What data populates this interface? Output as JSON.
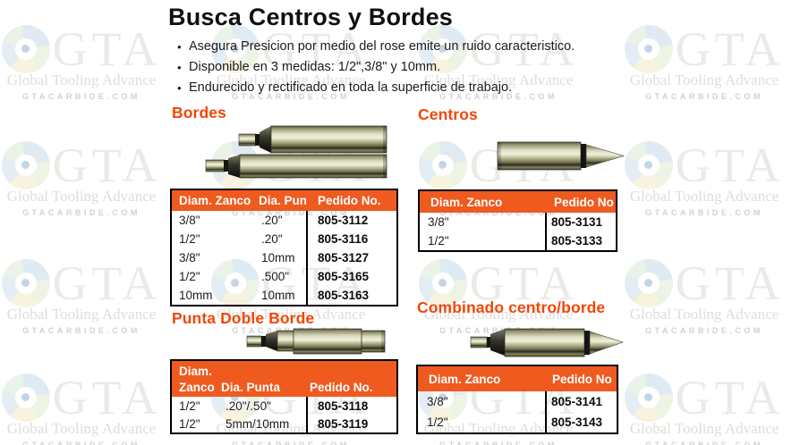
{
  "page": {
    "title": "Busca Centros y Bordes"
  },
  "intro": {
    "bullets": [
      "Asegura Presicion por medio del rose emite un ruido caracteristico.",
      "Disponible en 3 medidas: 1/2\",3/8\" y 10mm.",
      "Endurecido y rectificado en toda la superficie de trabajo."
    ]
  },
  "watermark": {
    "gta": "GTA",
    "name": "Global Tooling Advance",
    "site": "GTACARBIDE.COM"
  },
  "colors": {
    "title_orange": "#f24708",
    "table_header_orange": "#ef5a1f",
    "table_border": "#000000"
  },
  "sections": {
    "bordes": {
      "title": "Bordes",
      "image": "edge-finder-two-tools",
      "table": {
        "headers": [
          "Diam. Zanco",
          "Dia. Punt",
          "Pedido No."
        ],
        "rows": [
          {
            "zanco": "3/8\"",
            "punta": ".20\"",
            "pedido": "805-3112"
          },
          {
            "zanco": "1/2\"",
            "punta": ".20\"",
            "pedido": "805-3116"
          },
          {
            "zanco": "3/8\"",
            "punta": "10mm",
            "pedido": "805-3127"
          },
          {
            "zanco": "1/2\"",
            "punta": ".500\"",
            "pedido": "805-3165"
          },
          {
            "zanco": "10mm",
            "punta": "10mm",
            "pedido": "805-3163"
          }
        ]
      }
    },
    "centros": {
      "title": "Centros",
      "image": "center-finder-tool",
      "table": {
        "headers": [
          "Diam. Zanco",
          "Pedido No"
        ],
        "rows": [
          {
            "zanco": "3/8\"",
            "pedido": "805-3131"
          },
          {
            "zanco": "1/2\"",
            "pedido": "805-3133"
          }
        ]
      }
    },
    "punta": {
      "title": "Punta Doble Borde",
      "image": "double-edge-point-tool",
      "table": {
        "headers": [
          "Diam.",
          "Zanco",
          "Dia. Punta",
          "Pedido No."
        ],
        "rows": [
          {
            "zanco": "1/2\"",
            "punta": ".20\"/.50\"",
            "pedido": "805-3118"
          },
          {
            "zanco": "1/2\"",
            "punta": "5mm/10mm",
            "pedido": "805-3119"
          }
        ]
      }
    },
    "combinado": {
      "title": "Combinado centro/borde",
      "image": "combo-center-edge-tool",
      "table": {
        "headers": [
          "Diam. Zanco",
          "Pedido No"
        ],
        "rows": [
          {
            "zanco": "3/8\"",
            "pedido": "805-3141"
          },
          {
            "zanco": "1/2\"",
            "pedido": "805-3143"
          }
        ]
      }
    }
  }
}
